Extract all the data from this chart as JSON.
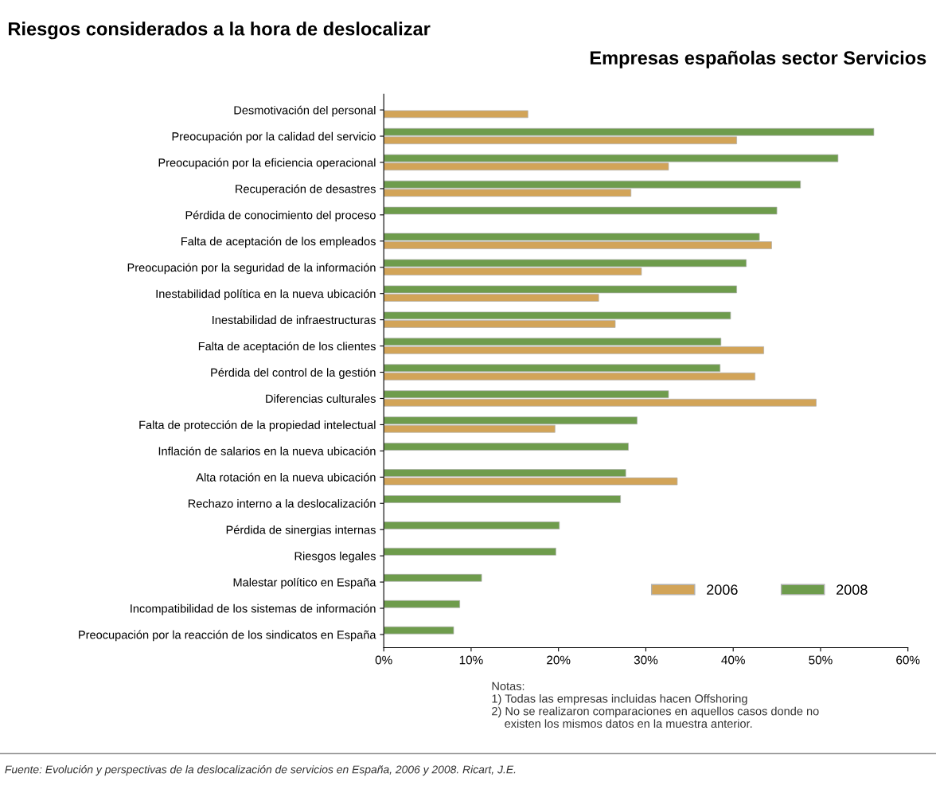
{
  "chart_data": {
    "type": "bar",
    "orientation": "horizontal",
    "title": "Riesgos considerados a la hora de deslocalizar",
    "subtitle": "Empresas españolas sector Servicios",
    "categories": [
      "Desmotivación del personal",
      "Preocupación por la calidad del servicio",
      "Preocupación por la eficiencia operacional",
      "Recuperación de desastres",
      "Pérdida de conocimiento del proceso",
      "Falta de aceptación de los empleados",
      "Preocupación por la seguridad de la información",
      "Inestabilidad política en la nueva ubicación",
      "Inestabilidad de infraestructuras",
      "Falta de aceptación de los clientes",
      "Pérdida del control de la gestión",
      "Diferencias culturales",
      "Falta de protección de la propiedad intelectual",
      "Inflación de salarios en la nueva ubicación",
      "Alta rotación en la nueva ubicación",
      "Rechazo interno a la deslocalización",
      "Pérdida de sinergias internas",
      "Riesgos legales",
      "Malestar político en España",
      "Incompatibilidad de los sistemas de información",
      "Preocupación por la reacción de los sindicatos en España"
    ],
    "series": [
      {
        "name": "2008",
        "color": "#6e9c4c",
        "values": [
          null,
          56.1,
          52.0,
          47.7,
          45.0,
          43.0,
          41.5,
          40.4,
          39.7,
          38.6,
          38.5,
          32.6,
          29.0,
          28.0,
          27.7,
          27.1,
          20.1,
          19.7,
          11.2,
          8.7,
          8.0
        ]
      },
      {
        "name": "2006",
        "color": "#d2a458",
        "values": [
          16.5,
          40.4,
          32.6,
          28.3,
          null,
          44.4,
          29.5,
          24.6,
          26.5,
          43.5,
          42.5,
          49.5,
          19.6,
          null,
          33.6,
          null,
          null,
          null,
          null,
          null,
          null
        ]
      }
    ],
    "xlim": [
      0,
      60
    ],
    "xticks": [
      {
        "value": 0,
        "label": "0%"
      },
      {
        "value": 10,
        "label": "10%"
      },
      {
        "value": 20,
        "label": "20%"
      },
      {
        "value": 30,
        "label": "30%"
      },
      {
        "value": 40,
        "label": "40%"
      },
      {
        "value": 50,
        "label": "50%"
      },
      {
        "value": 60,
        "label": "60%"
      }
    ],
    "grid": false,
    "legend": "bottom right",
    "annotations": [
      "Notas:\n1) Todas las empresas incluidas hacen Offshoring\n2) No se realizaron comparaciones en aquellos casos donde no\n    existen los mismos datos en la muestra anterior.",
      "Fuente: Evolución y perspectivas de la deslocalización de servicios en España, 2006 y 2008. Ricart, J.E."
    ]
  }
}
